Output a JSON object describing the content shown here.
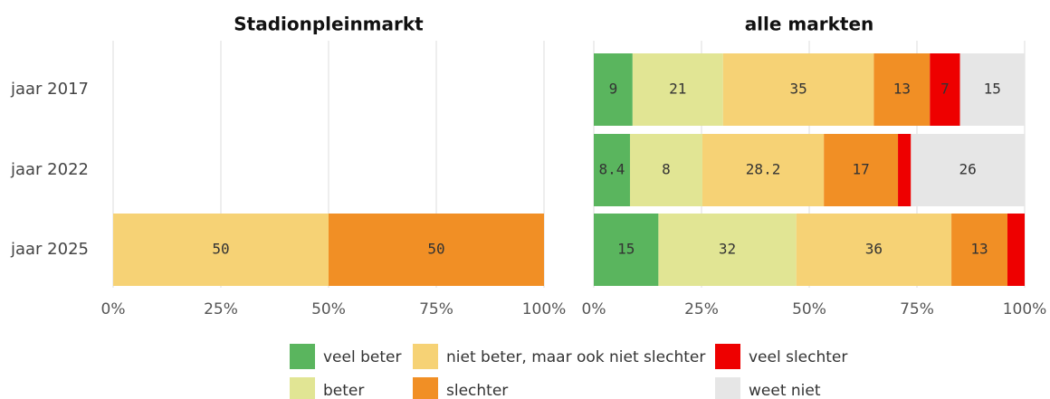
{
  "chart_data": [
    {
      "type": "stacked-bar-horizontal",
      "title": "Stadionpleinmarkt",
      "categories": [
        "jaar 2017",
        "jaar 2022",
        "jaar 2025"
      ],
      "series": [
        {
          "color": "#f6d275",
          "values": [
            null,
            null,
            50
          ]
        },
        {
          "color": "#f18f25",
          "values": [
            null,
            null,
            50
          ]
        }
      ],
      "xlim": [
        0,
        100
      ],
      "xticks": [
        {
          "value": 0,
          "label": "0%"
        },
        {
          "value": 25,
          "label": "25%"
        },
        {
          "value": 50,
          "label": "50%"
        },
        {
          "value": 75,
          "label": "75%"
        },
        {
          "value": 100,
          "label": "100%"
        }
      ],
      "grid": true
    },
    {
      "type": "stacked-bar-horizontal",
      "title": "alle markten",
      "categories": [
        "jaar 2017",
        "jaar 2022",
        "jaar 2025"
      ],
      "series": [
        {
          "name": "veel beter",
          "color": "#5ab55e",
          "values": [
            9,
            8.4,
            15
          ]
        },
        {
          "name": "beter",
          "color": "#e1e594",
          "values": [
            21,
            16.8,
            32
          ]
        },
        {
          "name": "niet beter, maar ook niet slechter",
          "color": "#f6d275",
          "values": [
            35,
            28.2,
            36
          ]
        },
        {
          "name": "slechter",
          "color": "#f18f25",
          "values": [
            13,
            17.2,
            13
          ]
        },
        {
          "name": "veel slechter",
          "color": "#ee0000",
          "values": [
            7,
            3,
            4
          ],
          "value_labels": [
            "7",
            null,
            null
          ]
        },
        {
          "name": "weet niet",
          "color": "#e6e6e6",
          "values": [
            15,
            26.4,
            0
          ],
          "value_labels": [
            "15",
            "26",
            null
          ]
        }
      ],
      "value_labels": [
        null,
        [
          null,
          "8",
          null
        ],
        null,
        [
          null,
          "17",
          null
        ],
        null,
        null
      ],
      "xlim": [
        0,
        100
      ],
      "xticks": [
        {
          "value": 0,
          "label": "0%"
        },
        {
          "value": 25,
          "label": "25%"
        },
        {
          "value": 50,
          "label": "50%"
        },
        {
          "value": 75,
          "label": "75%"
        },
        {
          "value": 100,
          "label": "100%"
        }
      ],
      "grid": true,
      "legend": "bottom"
    }
  ]
}
